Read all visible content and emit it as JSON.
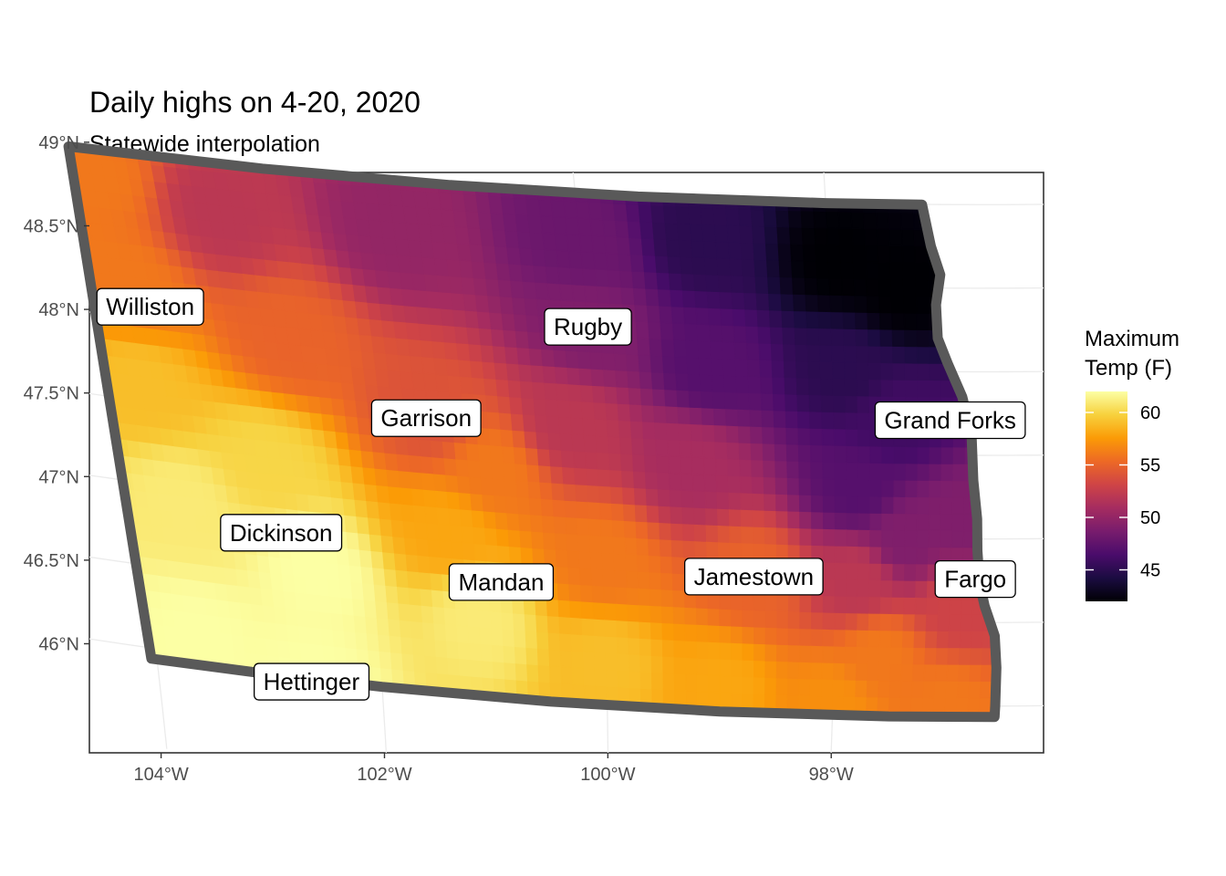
{
  "chart_data": {
    "type": "heatmap",
    "title": "Daily highs on 4-20, 2020",
    "subtitle": "Statewide interpolation",
    "x_axis": {
      "range": [
        -104.2,
        -96.1
      ],
      "ticks": [
        {
          "value": -104,
          "label": "104°W"
        },
        {
          "value": -102,
          "label": "102°W"
        },
        {
          "value": -100,
          "label": "100°W"
        },
        {
          "value": -98,
          "label": "98°W"
        }
      ]
    },
    "y_axis": {
      "range": [
        45.7,
        49.1
      ],
      "ticks": [
        {
          "value": 49.0,
          "label": "49°N"
        },
        {
          "value": 48.5,
          "label": "48.5°N"
        },
        {
          "value": 48.0,
          "label": "48°N"
        },
        {
          "value": 47.5,
          "label": "47.5°N"
        },
        {
          "value": 47.0,
          "label": "47°N"
        },
        {
          "value": 46.5,
          "label": "46.5°N"
        },
        {
          "value": 46.0,
          "label": "46°N"
        }
      ]
    },
    "grid": true,
    "legend": {
      "title_lines": [
        "Maximum",
        "Temp (F)"
      ],
      "placement": "right",
      "range": [
        42,
        62
      ],
      "ticks": [
        {
          "value": 60,
          "label": "60"
        },
        {
          "value": 55,
          "label": "55"
        },
        {
          "value": 50,
          "label": "50"
        },
        {
          "value": 45,
          "label": "45"
        }
      ],
      "colors": [
        "#000004",
        "#1b0c41",
        "#4a0c6b",
        "#781c6d",
        "#a52c60",
        "#cf4446",
        "#ed6925",
        "#fb9b06",
        "#f7d13d",
        "#fcffa4"
      ]
    },
    "outline_color": "#595959",
    "cities": [
      {
        "name": "Williston",
        "lon": -103.62,
        "lat": 48.08
      },
      {
        "name": "Rugby",
        "lon": -100.0,
        "lat": 48.2
      },
      {
        "name": "Garrison",
        "lon": -101.42,
        "lat": 47.58
      },
      {
        "name": "Grand Forks",
        "lon": -97.03,
        "lat": 47.71
      },
      {
        "name": "Dickinson",
        "lon": -102.77,
        "lat": 46.8
      },
      {
        "name": "Mandan",
        "lon": -100.89,
        "lat": 46.63
      },
      {
        "name": "Jamestown",
        "lon": -98.7,
        "lat": 46.75
      },
      {
        "name": "Fargo",
        "lon": -96.79,
        "lat": 46.76
      },
      {
        "name": "Hettinger",
        "lon": -102.63,
        "lat": 45.92
      }
    ],
    "temperature_field": [
      {
        "lon": -103.9,
        "lat": 48.85,
        "value": 56
      },
      {
        "lon": -103.8,
        "lat": 48.2,
        "value": 56
      },
      {
        "lon": -103.8,
        "lat": 47.6,
        "value": 59
      },
      {
        "lon": -103.6,
        "lat": 46.9,
        "value": 61
      },
      {
        "lon": -103.6,
        "lat": 46.1,
        "value": 62
      },
      {
        "lon": -102.6,
        "lat": 45.95,
        "value": 62
      },
      {
        "lon": -102.5,
        "lat": 46.6,
        "value": 62
      },
      {
        "lon": -102.8,
        "lat": 47.2,
        "value": 60
      },
      {
        "lon": -102.9,
        "lat": 48.7,
        "value": 52
      },
      {
        "lon": -102.5,
        "lat": 48.0,
        "value": 55
      },
      {
        "lon": -101.5,
        "lat": 48.7,
        "value": 50
      },
      {
        "lon": -101.4,
        "lat": 47.6,
        "value": 54
      },
      {
        "lon": -101.3,
        "lat": 46.9,
        "value": 58
      },
      {
        "lon": -101.1,
        "lat": 46.4,
        "value": 61
      },
      {
        "lon": -100.9,
        "lat": 47.3,
        "value": 56
      },
      {
        "lon": -100.0,
        "lat": 48.7,
        "value": 48
      },
      {
        "lon": -100.0,
        "lat": 48.2,
        "value": 49
      },
      {
        "lon": -100.2,
        "lat": 47.6,
        "value": 52
      },
      {
        "lon": -100.0,
        "lat": 46.8,
        "value": 56
      },
      {
        "lon": -100.0,
        "lat": 46.2,
        "value": 59
      },
      {
        "lon": -99.0,
        "lat": 48.75,
        "value": 45
      },
      {
        "lon": -99.0,
        "lat": 48.0,
        "value": 47
      },
      {
        "lon": -99.2,
        "lat": 47.4,
        "value": 51
      },
      {
        "lon": -98.7,
        "lat": 46.75,
        "value": 55
      },
      {
        "lon": -99.0,
        "lat": 46.1,
        "value": 58
      },
      {
        "lon": -97.9,
        "lat": 48.65,
        "value": 42
      },
      {
        "lon": -97.4,
        "lat": 48.5,
        "value": 42
      },
      {
        "lon": -97.9,
        "lat": 48.0,
        "value": 45
      },
      {
        "lon": -97.5,
        "lat": 47.7,
        "value": 46
      },
      {
        "lon": -97.8,
        "lat": 47.3,
        "value": 47
      },
      {
        "lon": -97.4,
        "lat": 47.0,
        "value": 49
      },
      {
        "lon": -96.9,
        "lat": 47.1,
        "value": 49
      },
      {
        "lon": -97.8,
        "lat": 46.75,
        "value": 52
      },
      {
        "lon": -96.9,
        "lat": 46.6,
        "value": 53
      },
      {
        "lon": -97.6,
        "lat": 46.3,
        "value": 56
      },
      {
        "lon": -97.0,
        "lat": 46.0,
        "value": 56
      },
      {
        "lon": -98.0,
        "lat": 46.0,
        "value": 57
      }
    ]
  }
}
